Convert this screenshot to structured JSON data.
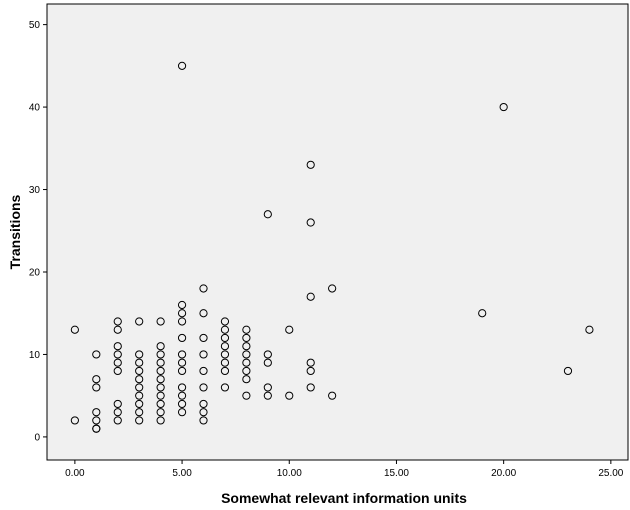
{
  "chart_data": {
    "type": "scatter",
    "title": "",
    "xlabel": "Somewhat relevant information units",
    "ylabel": "Transitions",
    "xlim": [
      -1.3,
      25.8
    ],
    "ylim": [
      -2.8,
      52.5
    ],
    "xticks": [
      0,
      5,
      10,
      15,
      20,
      25
    ],
    "xtick_labels": [
      "0.00",
      "5.00",
      "10.00",
      "15.00",
      "20.00",
      "25.00"
    ],
    "yticks": [
      0,
      10,
      20,
      30,
      40,
      50
    ],
    "ytick_labels": [
      "0",
      "10",
      "20",
      "30",
      "40",
      "50"
    ],
    "grid": false,
    "background_color": "#f0f0f0",
    "marker_color": "#000000",
    "points": [
      [
        0,
        2
      ],
      [
        0,
        13
      ],
      [
        1,
        1
      ],
      [
        1,
        1
      ],
      [
        1,
        2
      ],
      [
        1,
        3
      ],
      [
        1,
        6
      ],
      [
        1,
        7
      ],
      [
        1,
        10
      ],
      [
        2,
        2
      ],
      [
        2,
        3
      ],
      [
        2,
        4
      ],
      [
        2,
        8
      ],
      [
        2,
        9
      ],
      [
        2,
        10
      ],
      [
        2,
        11
      ],
      [
        2,
        13
      ],
      [
        2,
        14
      ],
      [
        3,
        2
      ],
      [
        3,
        3
      ],
      [
        3,
        4
      ],
      [
        3,
        5
      ],
      [
        3,
        6
      ],
      [
        3,
        7
      ],
      [
        3,
        8
      ],
      [
        3,
        9
      ],
      [
        3,
        10
      ],
      [
        3,
        14
      ],
      [
        4,
        2
      ],
      [
        4,
        3
      ],
      [
        4,
        4
      ],
      [
        4,
        5
      ],
      [
        4,
        6
      ],
      [
        4,
        7
      ],
      [
        4,
        8
      ],
      [
        4,
        9
      ],
      [
        4,
        10
      ],
      [
        4,
        11
      ],
      [
        4,
        14
      ],
      [
        5,
        3
      ],
      [
        5,
        4
      ],
      [
        5,
        5
      ],
      [
        5,
        6
      ],
      [
        5,
        8
      ],
      [
        5,
        9
      ],
      [
        5,
        10
      ],
      [
        5,
        12
      ],
      [
        5,
        14
      ],
      [
        5,
        15
      ],
      [
        5,
        16
      ],
      [
        5,
        45
      ],
      [
        6,
        2
      ],
      [
        6,
        3
      ],
      [
        6,
        4
      ],
      [
        6,
        6
      ],
      [
        6,
        8
      ],
      [
        6,
        10
      ],
      [
        6,
        12
      ],
      [
        6,
        15
      ],
      [
        6,
        18
      ],
      [
        7,
        6
      ],
      [
        7,
        8
      ],
      [
        7,
        9
      ],
      [
        7,
        10
      ],
      [
        7,
        11
      ],
      [
        7,
        12
      ],
      [
        7,
        13
      ],
      [
        7,
        14
      ],
      [
        8,
        5
      ],
      [
        8,
        7
      ],
      [
        8,
        8
      ],
      [
        8,
        9
      ],
      [
        8,
        10
      ],
      [
        8,
        11
      ],
      [
        8,
        12
      ],
      [
        8,
        13
      ],
      [
        9,
        5
      ],
      [
        9,
        6
      ],
      [
        9,
        9
      ],
      [
        9,
        10
      ],
      [
        9,
        27
      ],
      [
        10,
        5
      ],
      [
        10,
        13
      ],
      [
        11,
        6
      ],
      [
        11,
        8
      ],
      [
        11,
        9
      ],
      [
        11,
        17
      ],
      [
        11,
        26
      ],
      [
        11,
        33
      ],
      [
        12,
        5
      ],
      [
        12,
        18
      ],
      [
        19,
        15
      ],
      [
        20,
        40
      ],
      [
        23,
        8
      ],
      [
        24,
        13
      ]
    ]
  }
}
